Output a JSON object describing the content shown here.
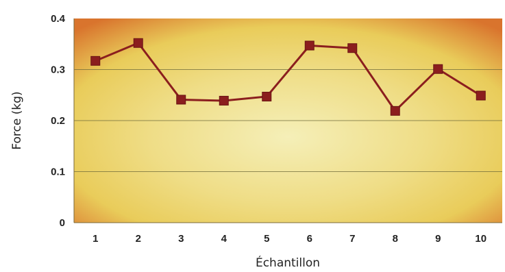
{
  "chart_data": {
    "type": "line",
    "title": "",
    "xlabel": "Échantillon",
    "ylabel": "Force (kg)",
    "categories": [
      "1",
      "2",
      "3",
      "4",
      "5",
      "6",
      "7",
      "8",
      "9",
      "10"
    ],
    "values": [
      0.317,
      0.352,
      0.241,
      0.239,
      0.247,
      0.347,
      0.342,
      0.219,
      0.301,
      0.249
    ],
    "ylim": [
      0,
      0.4
    ],
    "yticks": [
      "0",
      "0.1",
      "0.2",
      "0.3",
      "0.4"
    ],
    "grid": true,
    "legend": "none",
    "colors": {
      "line": "#8b1e1e",
      "marker": "#8b1e1e",
      "grid": "#6e6a3a",
      "background_center": "#f5efb8",
      "background_mid": "#e9cc5a",
      "background_edge": "#d9742d"
    }
  }
}
